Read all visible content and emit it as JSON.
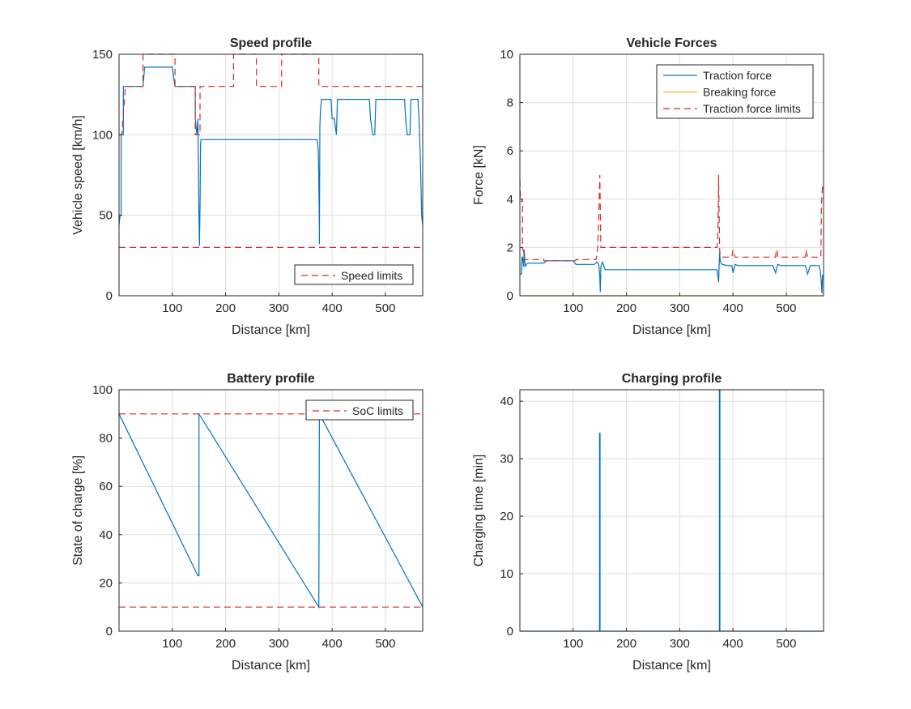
{
  "chart_data": [
    {
      "id": "speed",
      "type": "line",
      "title": "Speed profile",
      "xlabel": "Distance [km]",
      "ylabel": "Vehicle speed [km/h]",
      "xlim": [
        0,
        570
      ],
      "ylim": [
        0,
        150
      ],
      "xticks": [
        100,
        200,
        300,
        400,
        500
      ],
      "yticks": [
        0,
        50,
        100,
        150
      ],
      "grid": true,
      "legend": "bottom-right",
      "series": [
        {
          "key": "speed",
          "color": "#0072BD",
          "style": "solid",
          "in_legend": false,
          "x": [
            0,
            2,
            4,
            4,
            8,
            8,
            12,
            12,
            45,
            48,
            100,
            105,
            143,
            143,
            146,
            148,
            150,
            151,
            151,
            152,
            153,
            154,
            156,
            160,
            200,
            300,
            372,
            374,
            375,
            376,
            376,
            377,
            378,
            380,
            381,
            383,
            398,
            400,
            404,
            408,
            410,
            412,
            470,
            472,
            476,
            480,
            482,
            484,
            536,
            538,
            541,
            546,
            548,
            551,
            561,
            563,
            566,
            568,
            570
          ],
          "y": [
            44,
            50,
            50,
            100,
            100,
            130,
            130,
            130,
            130,
            142,
            142,
            130,
            130,
            110,
            100,
            110,
            50,
            31,
            31,
            55,
            95,
            97,
            97,
            97,
            97,
            97,
            97,
            90,
            72,
            40,
            32,
            105,
            115,
            122,
            122,
            122,
            122,
            110,
            110,
            100,
            122,
            122,
            122,
            110,
            100,
            100,
            122,
            122,
            122,
            110,
            100,
            100,
            122,
            122,
            122,
            110,
            80,
            50,
            44
          ]
        },
        {
          "key": "speed_limit_upper",
          "name": "Speed limits",
          "color": "#D62728",
          "style": "dashed",
          "in_legend": true,
          "x": [
            0,
            5,
            5,
            12,
            12,
            45,
            45,
            105,
            105,
            143,
            143,
            152,
            152,
            158,
            158,
            215,
            215,
            258,
            258,
            305,
            305,
            375,
            375,
            398,
            398,
            405,
            405,
            470,
            470,
            480,
            480,
            483,
            483,
            536,
            536,
            548,
            548,
            553,
            553,
            570
          ],
          "y": [
            100,
            100,
            100,
            130,
            130,
            130,
            150,
            150,
            130,
            130,
            100,
            100,
            130,
            130,
            130,
            130,
            150,
            150,
            130,
            130,
            150,
            150,
            130,
            130,
            130,
            130,
            130,
            130,
            130,
            130,
            130,
            130,
            130,
            130,
            130,
            130,
            130,
            130,
            130,
            130
          ]
        },
        {
          "key": "speed_limit_lower",
          "color": "#D62728",
          "style": "dashed",
          "in_legend": false,
          "x": [
            0,
            570
          ],
          "y": [
            30,
            30
          ]
        }
      ]
    },
    {
      "id": "forces",
      "type": "line",
      "title": "Vehicle Forces",
      "xlabel": "Distance [km]",
      "ylabel": "Force [kN]",
      "xlim": [
        0,
        570
      ],
      "ylim": [
        0,
        10
      ],
      "xticks": [
        100,
        200,
        300,
        400,
        500
      ],
      "yticks": [
        0,
        2,
        4,
        6,
        8,
        10
      ],
      "grid": true,
      "legend": "top-right",
      "series": [
        {
          "key": "traction",
          "name": "Traction force",
          "color": "#0072BD",
          "style": "solid",
          "in_legend": true,
          "x": [
            0,
            3,
            4,
            5,
            7,
            8,
            10,
            12,
            15,
            45,
            50,
            100,
            105,
            140,
            145,
            148,
            150,
            151,
            152,
            155,
            160,
            300,
            370,
            372,
            373,
            374,
            375,
            376,
            380,
            390,
            398,
            400,
            404,
            410,
            470,
            475,
            480,
            484,
            490,
            536,
            540,
            545,
            548,
            555,
            562,
            564,
            566,
            567,
            568,
            570
          ],
          "y": [
            0.9,
            0.9,
            1.6,
            1.6,
            1.2,
            1.9,
            1.2,
            1.3,
            1.35,
            1.35,
            1.45,
            1.45,
            1.3,
            1.3,
            1.4,
            1.3,
            0.8,
            0.15,
            1.2,
            1.4,
            1.08,
            1.08,
            1.08,
            0.8,
            0.55,
            1.3,
            1.8,
            1.4,
            1.3,
            1.25,
            1.25,
            0.95,
            1.3,
            1.25,
            1.25,
            1.25,
            0.95,
            1.3,
            1.25,
            1.25,
            0.9,
            1.25,
            1.25,
            1.25,
            1.25,
            1.0,
            0.5,
            0.1,
            0.85,
            0.85
          ]
        },
        {
          "key": "breaking",
          "name": "Breaking force",
          "color": "#EDB120",
          "style": "solid",
          "in_legend": true,
          "x": [
            0,
            570
          ],
          "y": [
            0,
            0
          ]
        },
        {
          "key": "traction_limits",
          "name": "Traction force limits",
          "color": "#D62728",
          "style": "dashed",
          "in_legend": true,
          "x": [
            0,
            1,
            3,
            4,
            5,
            5,
            7,
            8,
            12,
            12,
            45,
            45,
            105,
            105,
            143,
            144,
            146,
            148,
            150,
            152,
            153,
            156,
            160,
            200,
            370,
            372,
            373,
            374,
            375,
            376,
            378,
            380,
            398,
            400,
            404,
            405,
            410,
            480,
            481,
            483,
            484,
            490,
            536,
            537,
            540,
            548,
            549,
            565,
            566,
            568,
            570
          ],
          "y": [
            4.8,
            4.0,
            3.9,
            3.9,
            4.0,
            1.9,
            1.9,
            1.5,
            1.5,
            1.5,
            1.5,
            1.45,
            1.45,
            1.5,
            1.5,
            1.6,
            2.0,
            3.2,
            5.0,
            2.0,
            2.0,
            2.0,
            2.0,
            2.0,
            2.0,
            2.8,
            5.0,
            3.2,
            1.9,
            1.7,
            1.6,
            1.6,
            1.6,
            1.9,
            1.6,
            1.6,
            1.6,
            1.6,
            1.9,
            1.9,
            1.6,
            1.6,
            1.6,
            1.9,
            1.6,
            1.6,
            1.6,
            1.6,
            3.8,
            4.5,
            4.5
          ]
        }
      ]
    },
    {
      "id": "battery",
      "type": "line",
      "title": "Battery profile",
      "xlabel": "Distance [km]",
      "ylabel": "State of charge [%]",
      "xlim": [
        0,
        570
      ],
      "ylim": [
        0,
        100
      ],
      "xticks": [
        100,
        200,
        300,
        400,
        500
      ],
      "yticks": [
        0,
        20,
        40,
        60,
        80,
        100
      ],
      "grid": true,
      "legend": "top-right",
      "series": [
        {
          "key": "soc",
          "color": "#0072BD",
          "style": "solid",
          "in_legend": false,
          "x": [
            0,
            148,
            150,
            150,
            375,
            375,
            376,
            570
          ],
          "y": [
            90,
            23,
            23,
            90,
            10,
            10,
            90,
            10
          ]
        },
        {
          "key": "soc_max",
          "name": "SoC limits",
          "color": "#D62728",
          "style": "dashed",
          "in_legend": true,
          "x": [
            0,
            570
          ],
          "y": [
            90,
            90
          ]
        },
        {
          "key": "soc_min",
          "color": "#D62728",
          "style": "dashed",
          "in_legend": false,
          "x": [
            0,
            570
          ],
          "y": [
            10,
            10
          ]
        }
      ]
    },
    {
      "id": "charging",
      "type": "line",
      "title": "Charging profile",
      "xlabel": "Distance [km]",
      "ylabel": "Charging time [min]",
      "xlim": [
        0,
        570
      ],
      "ylim": [
        0,
        42
      ],
      "xticks": [
        100,
        200,
        300,
        400,
        500
      ],
      "yticks": [
        0,
        10,
        20,
        30,
        40
      ],
      "grid": true,
      "legend": "none",
      "series": [
        {
          "key": "charge",
          "color": "#0072BD",
          "style": "solid",
          "in_legend": false,
          "x": [
            0,
            149.5,
            149.5,
            150.5,
            150.5,
            374.5,
            374.5,
            375.5,
            375.5,
            570
          ],
          "y": [
            0,
            0,
            34.4,
            34.4,
            0,
            0,
            42,
            42,
            0,
            0
          ]
        }
      ]
    }
  ]
}
